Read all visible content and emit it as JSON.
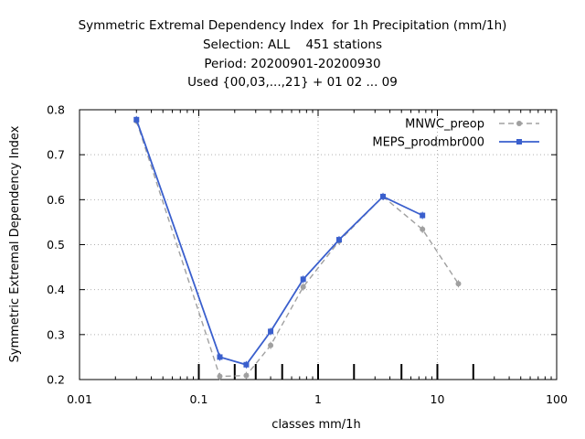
{
  "chart_data": {
    "type": "line",
    "title_lines": [
      "Symmetric Extremal Dependency Index  for 1h Precipitation (mm/1h)",
      "Selection: ALL    451 stations",
      "Period: 20200901-20200930",
      "Used {00,03,...,21} + 01 02 ... 09"
    ],
    "xlabel": "classes mm/1h",
    "ylabel": "Symmetric Extremal Dependency Index",
    "x_scale": "log",
    "xlim": [
      0.01,
      100
    ],
    "ylim": [
      0.2,
      0.8
    ],
    "x_ticks": [
      0.01,
      0.1,
      1,
      10,
      100
    ],
    "x_tick_labels": [
      "0.01",
      "0.1",
      "1",
      "10",
      "100"
    ],
    "y_ticks": [
      0.2,
      0.3,
      0.4,
      0.5,
      0.6,
      0.7,
      0.8
    ],
    "y_tick_labels": [
      "0.2",
      "0.3",
      "0.4",
      "0.5",
      "0.6",
      "0.7",
      "0.8"
    ],
    "grid": true,
    "legend_position": "top-right",
    "class_markers": [
      0.1,
      0.2,
      0.3,
      0.5,
      1,
      2,
      5,
      10,
      20
    ],
    "series": [
      {
        "name": "MNWC_preop",
        "color": "#a0a0a0",
        "style": "dashed",
        "marker": "circle",
        "x": [
          0.03,
          0.15,
          0.25,
          0.4,
          0.75,
          1.5,
          3.5,
          7.5,
          15
        ],
        "y": [
          0.775,
          0.207,
          0.209,
          0.276,
          0.406,
          0.508,
          0.607,
          0.534,
          0.413
        ]
      },
      {
        "name": "MEPS_prodmbr000",
        "color": "#3a5fcd",
        "style": "solid",
        "marker": "square",
        "x": [
          0.03,
          0.15,
          0.25,
          0.4,
          0.75,
          1.5,
          3.5,
          7.5
        ],
        "y": [
          0.778,
          0.25,
          0.233,
          0.307,
          0.423,
          0.511,
          0.607,
          0.565
        ]
      }
    ]
  }
}
